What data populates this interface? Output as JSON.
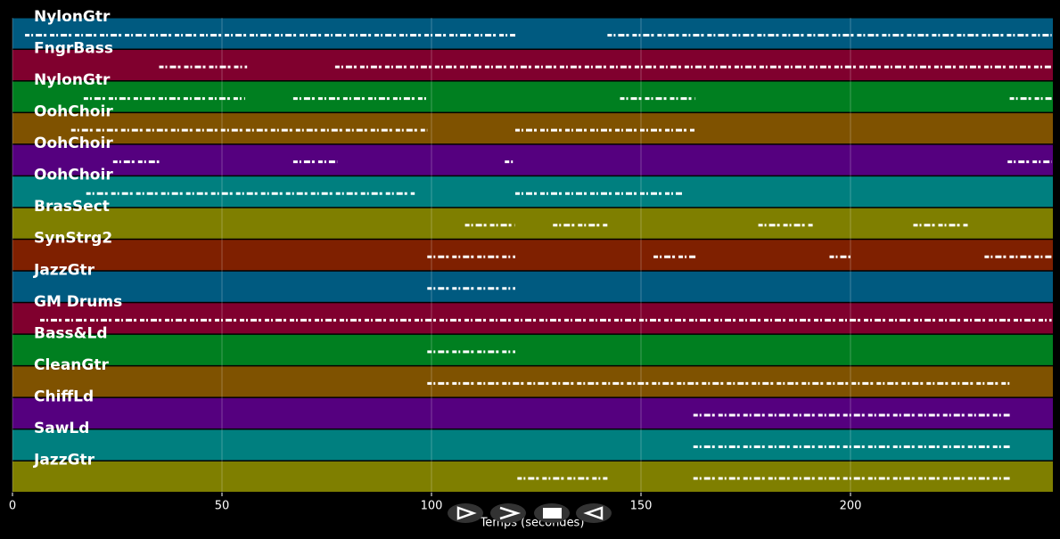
{
  "chart_data": {
    "type": "pianoroll",
    "xlabel": "Temps (secondes)",
    "xlim": [
      0,
      248.3
    ],
    "xticks": [
      0,
      50,
      100,
      150,
      200
    ],
    "grid": true,
    "tracks": [
      {
        "name": "NylonGtr",
        "color": "#005a80",
        "segments": [
          [
            3,
            120
          ],
          [
            142,
            248
          ]
        ]
      },
      {
        "name": "FngrBass",
        "color": "#80002e",
        "segments": [
          [
            35,
            56
          ],
          [
            77,
            248
          ]
        ]
      },
      {
        "name": "NylonGtr",
        "color": "#007f20",
        "segments": [
          [
            17,
            55.5
          ],
          [
            67,
            99
          ],
          [
            145,
            163
          ],
          [
            238,
            248
          ]
        ]
      },
      {
        "name": "OohChoir",
        "color": "#7f5200",
        "segments": [
          [
            14,
            99
          ],
          [
            120,
            163
          ]
        ]
      },
      {
        "name": "OohChoir",
        "color": "#55007f",
        "segments": [
          [
            24,
            35
          ],
          [
            67,
            77.5
          ],
          [
            117.5,
            120
          ],
          [
            237.5,
            248
          ]
        ]
      },
      {
        "name": "OohChoir",
        "color": "#007f7f",
        "segments": [
          [
            17.6,
            96
          ],
          [
            120,
            160
          ]
        ]
      },
      {
        "name": "BrasSect",
        "color": "#7f7f00",
        "segments": [
          [
            108,
            120
          ],
          [
            129,
            142
          ],
          [
            178,
            191
          ],
          [
            215,
            228
          ]
        ]
      },
      {
        "name": "SynStrg2",
        "color": "#7f2000",
        "segments": [
          [
            99,
            120
          ],
          [
            153,
            163
          ],
          [
            195,
            200
          ],
          [
            232,
            248
          ]
        ]
      },
      {
        "name": "JazzGtr",
        "color": "#005a80",
        "segments": [
          [
            99,
            120
          ]
        ]
      },
      {
        "name": "GM Drums",
        "color": "#80002e",
        "segments": [
          [
            6.6,
            248
          ]
        ]
      },
      {
        "name": "Bass&Ld",
        "color": "#007f20",
        "segments": [
          [
            99,
            120
          ]
        ]
      },
      {
        "name": "CleanGtr",
        "color": "#7f5200",
        "segments": [
          [
            99,
            238
          ]
        ]
      },
      {
        "name": "ChiffLd",
        "color": "#55007f",
        "segments": [
          [
            162.5,
            238
          ]
        ]
      },
      {
        "name": "SawLd",
        "color": "#007f7f",
        "segments": [
          [
            162.5,
            238
          ]
        ]
      },
      {
        "name": "JazzGtr",
        "color": "#7f7f00",
        "segments": [
          [
            120.5,
            142
          ],
          [
            162.5,
            238
          ]
        ]
      }
    ]
  }
}
